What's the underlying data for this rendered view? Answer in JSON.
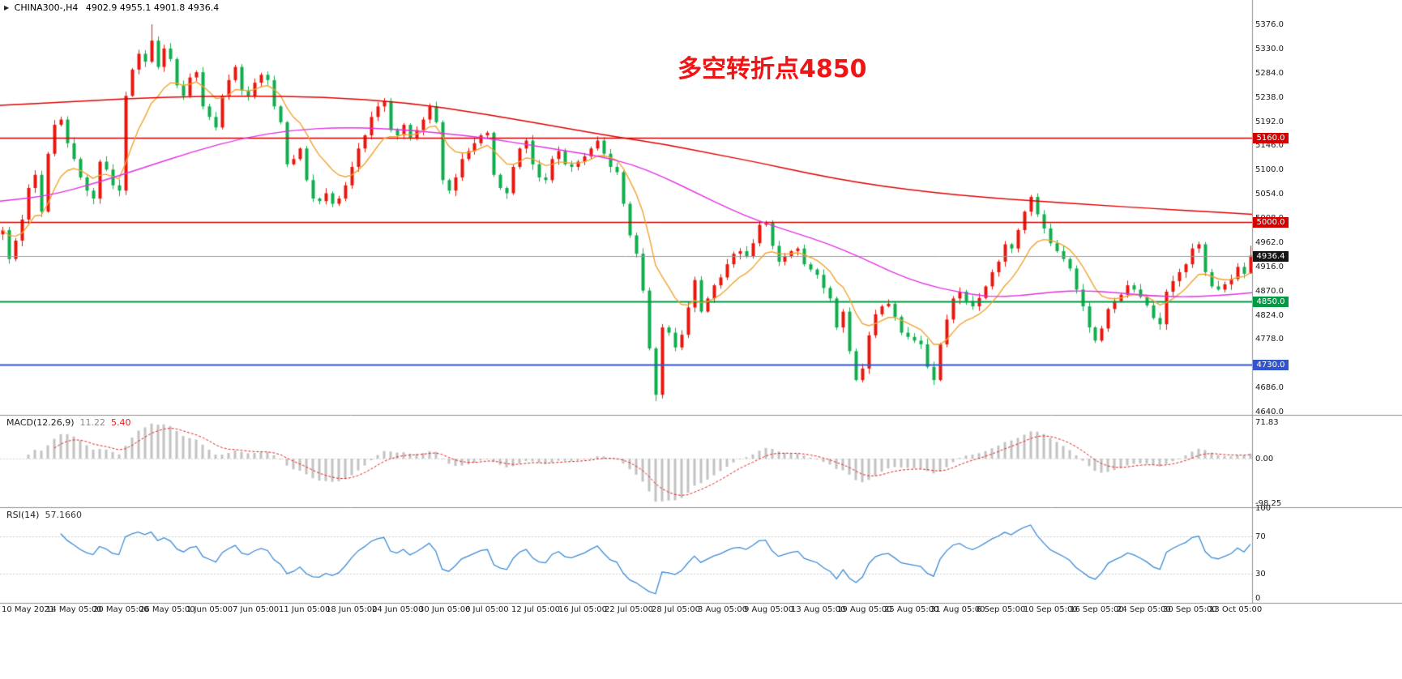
{
  "header": {
    "symbol": "CHINA300-,H4",
    "ohlc": "4902.9 4955.1 4901.8 4936.4",
    "marker": "▶"
  },
  "annotation": {
    "text": "多空转折点4850",
    "color": "#f01414"
  },
  "price_axis": {
    "ticks": [
      "5376.0",
      "5330.0",
      "5284.0",
      "5238.0",
      "5192.0",
      "5146.0",
      "5100.0",
      "5054.0",
      "5008.0",
      "4962.0",
      "4916.0",
      "4870.0",
      "4824.0",
      "4778.0",
      "4732.0",
      "4686.0",
      "4640.0"
    ]
  },
  "levels": [
    {
      "price": 5160.0,
      "label": "5160.0",
      "color": "#d40000",
      "width": 1.4
    },
    {
      "price": 5000.0,
      "label": "5000.0",
      "color": "#d40000",
      "width": 1.4
    },
    {
      "price": 4850.0,
      "label": "4850.0",
      "color": "#009944",
      "width": 1.8
    },
    {
      "price": 4730.0,
      "label": "4730.0",
      "color": "#3355cc",
      "width": 2.0
    }
  ],
  "current_price": {
    "value": 4936.4,
    "label": "4936.4",
    "box_color": "#141414",
    "line_color": "#9a9a9a"
  },
  "x_axis": {
    "labels": [
      "10 May 2021",
      "14 May 05:00",
      "20 May 05:00",
      "26 May 05:00",
      "1 Jun 05:00",
      "7 Jun 05:00",
      "11 Jun 05:00",
      "18 Jun 05:00",
      "24 Jun 05:00",
      "30 Jun 05:00",
      "6 Jul 05:00",
      "12 Jul 05:00",
      "16 Jul 05:00",
      "22 Jul 05:00",
      "28 Jul 05:00",
      "3 Aug 05:00",
      "9 Aug 05:00",
      "13 Aug 05:00",
      "19 Aug 05:00",
      "25 Aug 05:00",
      "31 Aug 05:00",
      "6 Sep 05:00",
      "10 Sep 05:00",
      "16 Sep 05:00",
      "24 Sep 05:00",
      "30 Sep 05:00",
      "13 Oct 05:00"
    ]
  },
  "macd_panel": {
    "title": "MACD(12.26,9)",
    "value_main": "11.22",
    "value_signal": "5.40",
    "ticks": [
      "71.83",
      "0.00",
      "-98.25"
    ]
  },
  "rsi_panel": {
    "title": "RSI(14)",
    "value": "57.1660",
    "ticks": [
      "100",
      "70",
      "30",
      "0"
    ],
    "tick_values": [
      100,
      70,
      30,
      0
    ]
  },
  "colors": {
    "up": "#e8160c",
    "down": "#0fae4c",
    "ma_orange": "#efa431",
    "ma_magenta": "#e331e3",
    "ma_red": "#e00000",
    "macd_bar": "#c2c2c2",
    "macd_signal": "#e02020",
    "macd_zero": "#d4d4d4",
    "rsi_line": "#3d8bd4",
    "rsi_level": "#cccccc",
    "separator": "#8f8f8f",
    "text": "#1b1b1b"
  },
  "chart_data": {
    "type": "candlestick",
    "symbol": "CHINA300-",
    "timeframe": "H4",
    "title_annotation": "多空转折点4850",
    "current_ohlc": {
      "open": 4902.9,
      "high": 4955.1,
      "low": 4901.8,
      "close": 4936.4
    },
    "y_axis": {
      "min": 4640,
      "max": 5376,
      "tick_step": 46
    },
    "x_span": [
      "10 May 2021",
      "13 Oct 2021"
    ],
    "horizontal_levels": [
      5160.0,
      5000.0,
      4850.0,
      4730.0
    ],
    "closes": [
      4985,
      4930,
      4965,
      5005,
      5065,
      5090,
      5020,
      5130,
      5185,
      5195,
      5150,
      5120,
      5085,
      5060,
      5045,
      5115,
      5100,
      5070,
      5060,
      5240,
      5290,
      5320,
      5305,
      5345,
      5295,
      5330,
      5310,
      5260,
      5240,
      5275,
      5285,
      5220,
      5200,
      5180,
      5240,
      5270,
      5295,
      5250,
      5240,
      5265,
      5280,
      5270,
      5220,
      5190,
      5110,
      5120,
      5140,
      5080,
      5045,
      5040,
      5055,
      5035,
      5045,
      5070,
      5105,
      5140,
      5165,
      5200,
      5220,
      5230,
      5175,
      5165,
      5185,
      5160,
      5175,
      5195,
      5220,
      5190,
      5080,
      5060,
      5085,
      5120,
      5135,
      5150,
      5165,
      5170,
      5090,
      5065,
      5055,
      5105,
      5140,
      5155,
      5110,
      5085,
      5080,
      5120,
      5135,
      5110,
      5105,
      5115,
      5125,
      5140,
      5155,
      5130,
      5105,
      5095,
      5035,
      4975,
      4940,
      4870,
      4760,
      4672,
      4800,
      4790,
      4762,
      4786,
      4838,
      4890,
      4830,
      4855,
      4880,
      4895,
      4920,
      4940,
      4945,
      4935,
      4960,
      4995,
      5000,
      4955,
      4925,
      4935,
      4945,
      4950,
      4920,
      4910,
      4900,
      4875,
      4855,
      4800,
      4830,
      4755,
      4700,
      4722,
      4785,
      4825,
      4840,
      4845,
      4820,
      4790,
      4782,
      4775,
      4768,
      4725,
      4700,
      4768,
      4815,
      4855,
      4868,
      4850,
      4840,
      4856,
      4878,
      4905,
      4925,
      4958,
      4950,
      4985,
      5020,
      5048,
      5015,
      4988,
      4960,
      4945,
      4930,
      4912,
      4872,
      4840,
      4800,
      4775,
      4798,
      4835,
      4850,
      4862,
      4880,
      4872,
      4858,
      4842,
      4818,
      4806,
      4868,
      4888,
      4905,
      4920,
      4950,
      4958,
      4905,
      4878,
      4872,
      4882,
      4892,
      4915,
      4902,
      4936.4
    ],
    "spikes": [
      {
        "i": 23,
        "high": 5376
      },
      {
        "i": 101,
        "low": 4660
      }
    ],
    "ma_orange_ema_period": 10,
    "ma_magenta_path": [
      [
        0,
        5040
      ],
      [
        60,
        5050
      ],
      [
        120,
        5075
      ],
      [
        180,
        5105
      ],
      [
        240,
        5135
      ],
      [
        300,
        5160
      ],
      [
        360,
        5175
      ],
      [
        420,
        5180
      ],
      [
        480,
        5178
      ],
      [
        540,
        5170
      ],
      [
        600,
        5160
      ],
      [
        660,
        5145
      ],
      [
        700,
        5135
      ],
      [
        740,
        5125
      ],
      [
        780,
        5110
      ],
      [
        820,
        5085
      ],
      [
        860,
        5055
      ],
      [
        900,
        5025
      ],
      [
        940,
        5000
      ],
      [
        980,
        4980
      ],
      [
        1020,
        4960
      ],
      [
        1060,
        4935
      ],
      [
        1100,
        4905
      ],
      [
        1140,
        4882
      ],
      [
        1180,
        4868
      ],
      [
        1220,
        4858
      ],
      [
        1260,
        4860
      ],
      [
        1300,
        4868
      ],
      [
        1340,
        4870
      ],
      [
        1380,
        4866
      ],
      [
        1420,
        4860
      ],
      [
        1460,
        4858
      ],
      [
        1500,
        4860
      ],
      [
        1545,
        4866
      ]
    ],
    "ma_red_path": [
      [
        0,
        5222
      ],
      [
        100,
        5230
      ],
      [
        200,
        5238
      ],
      [
        300,
        5240
      ],
      [
        400,
        5238
      ],
      [
        500,
        5228
      ],
      [
        600,
        5205
      ],
      [
        700,
        5178
      ],
      [
        760,
        5162
      ],
      [
        820,
        5148
      ],
      [
        880,
        5130
      ],
      [
        940,
        5112
      ],
      [
        1000,
        5092
      ],
      [
        1060,
        5075
      ],
      [
        1120,
        5062
      ],
      [
        1180,
        5052
      ],
      [
        1240,
        5044
      ],
      [
        1300,
        5038
      ],
      [
        1360,
        5032
      ],
      [
        1420,
        5026
      ],
      [
        1480,
        5021
      ],
      [
        1545,
        5015
      ]
    ],
    "macd": {
      "fast": 12,
      "slow": 26,
      "signal": 9,
      "current": 11.22,
      "current_signal": 5.4,
      "y_range": [
        -98.25,
        71.83
      ]
    },
    "rsi": {
      "period": 14,
      "current": 57.166,
      "y_range": [
        0,
        100
      ],
      "levels": [
        70,
        30
      ]
    }
  }
}
